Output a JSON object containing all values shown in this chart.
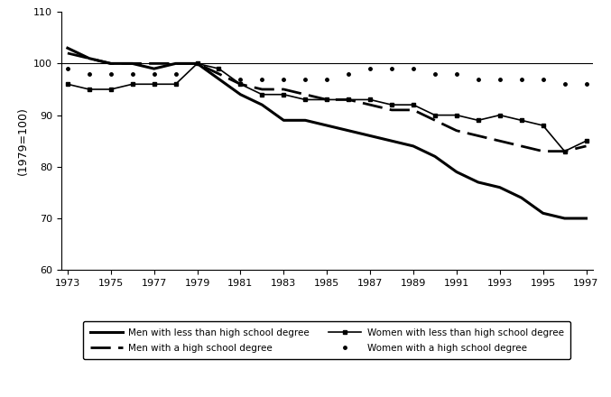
{
  "years": [
    1973,
    1974,
    1975,
    1976,
    1977,
    1978,
    1979,
    1980,
    1981,
    1982,
    1983,
    1984,
    1985,
    1986,
    1987,
    1988,
    1989,
    1990,
    1991,
    1992,
    1993,
    1994,
    1995,
    1996,
    1997
  ],
  "men_less_hs": [
    103,
    101,
    100,
    100,
    99,
    100,
    100,
    97,
    94,
    92,
    89,
    89,
    88,
    87,
    86,
    85,
    84,
    82,
    79,
    77,
    76,
    74,
    71,
    70,
    70
  ],
  "men_hs": [
    102,
    101,
    100,
    100,
    100,
    100,
    100,
    98,
    96,
    95,
    95,
    94,
    93,
    93,
    92,
    91,
    91,
    89,
    87,
    86,
    85,
    84,
    83,
    83,
    84
  ],
  "women_less_hs": [
    96,
    95,
    95,
    96,
    96,
    96,
    100,
    99,
    96,
    94,
    94,
    93,
    93,
    93,
    93,
    92,
    92,
    90,
    90,
    89,
    90,
    89,
    88,
    83,
    85
  ],
  "women_hs": [
    99,
    98,
    98,
    98,
    98,
    98,
    100,
    99,
    97,
    97,
    97,
    97,
    97,
    98,
    99,
    99,
    99,
    98,
    98,
    97,
    97,
    97,
    97,
    96,
    96
  ],
  "ylabel": "(1979=100)",
  "ylim": [
    60,
    110
  ],
  "yticks": [
    60,
    70,
    80,
    90,
    100,
    110
  ],
  "xlim": [
    1973,
    1997
  ],
  "xticks": [
    1973,
    1975,
    1977,
    1979,
    1981,
    1983,
    1985,
    1987,
    1989,
    1991,
    1993,
    1995,
    1997
  ],
  "hline_y": 100,
  "legend_labels": [
    "Men with less than high school degree",
    "Men with a high school degree",
    "Women with less than high school degree",
    "Women with a high school degree"
  ]
}
